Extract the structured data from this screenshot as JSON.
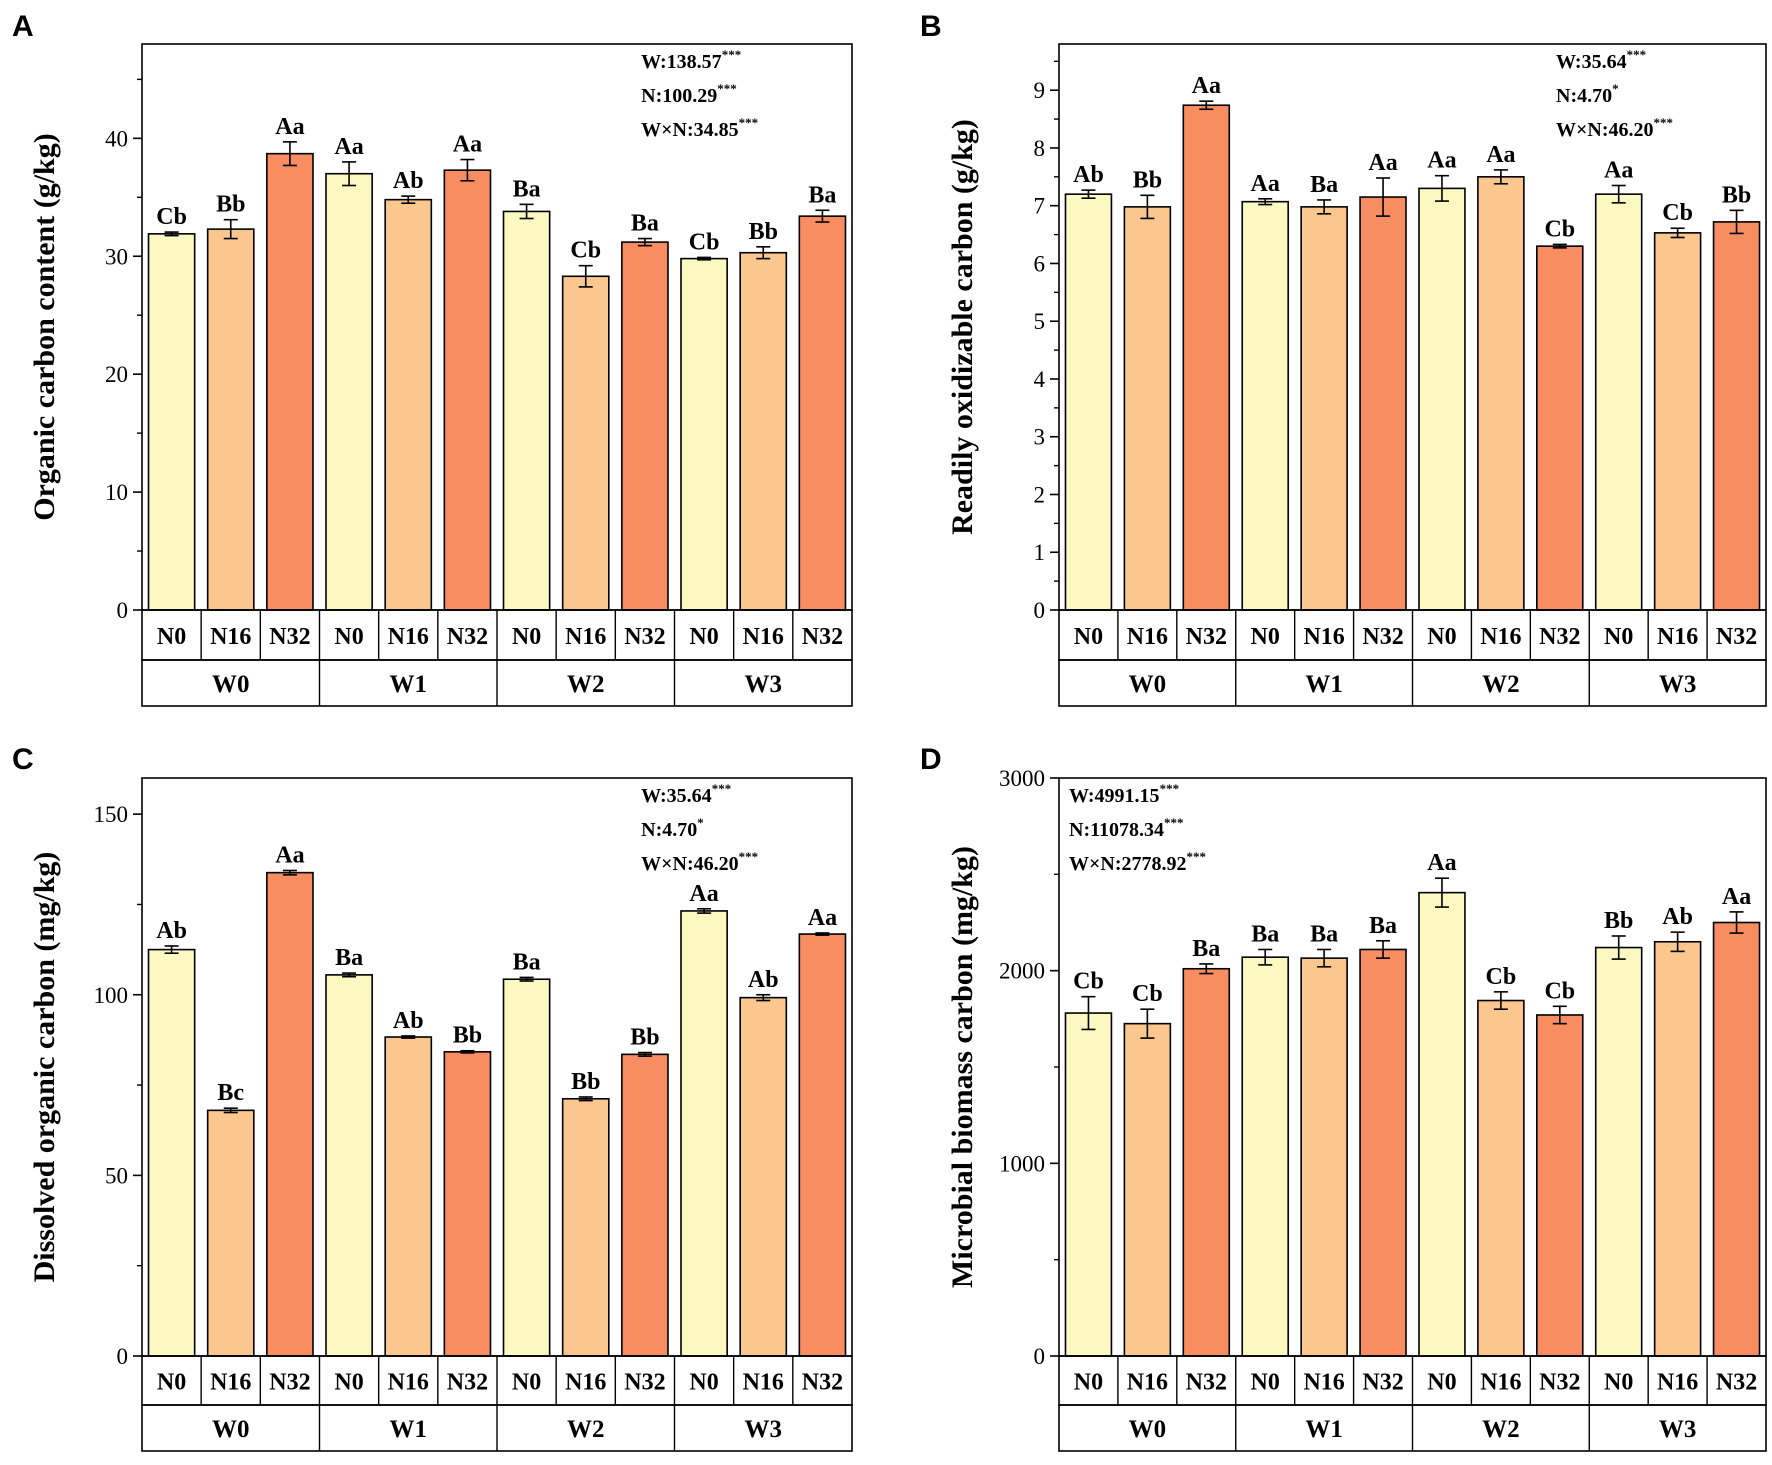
{
  "colors": {
    "N0": "#fcf8c2",
    "N16": "#fbc78f",
    "N32": "#f98d62",
    "stroke": "#000000"
  },
  "chart_data": [
    {
      "panel": "A",
      "type": "bar",
      "ylabel": "Organic carbon content  (g/kg)",
      "ylim": [
        0,
        48
      ],
      "yticks": [
        0,
        10,
        20,
        30,
        40
      ],
      "groups": [
        "W0",
        "W1",
        "W2",
        "W3"
      ],
      "categories": [
        "N0",
        "N16",
        "N32"
      ],
      "values": [
        [
          31.9,
          32.3,
          38.7
        ],
        [
          37.0,
          34.8,
          37.3
        ],
        [
          33.8,
          28.3,
          31.2
        ],
        [
          29.8,
          30.3,
          33.4
        ]
      ],
      "errors": [
        [
          0.15,
          0.8,
          1.0
        ],
        [
          1.0,
          0.3,
          0.9
        ],
        [
          0.6,
          0.9,
          0.3
        ],
        [
          0.1,
          0.5,
          0.5
        ]
      ],
      "labels": [
        [
          "Cb",
          "Bb",
          "Aa"
        ],
        [
          "Aa",
          "Ab",
          "Aa"
        ],
        [
          "Ba",
          "Cb",
          "Ba"
        ],
        [
          "Cb",
          "Bb",
          "Ba"
        ]
      ],
      "stats_position": "top-right",
      "stats": [
        {
          "text": "W:138.57",
          "sig": "***"
        },
        {
          "text": "N:100.29",
          "sig": "***"
        },
        {
          "text": "W×N:34.85",
          "sig": "***"
        }
      ]
    },
    {
      "panel": "B",
      "type": "bar",
      "ylabel": "Readily oxidizable carbon (g/kg)",
      "ylim": [
        0,
        9.8
      ],
      "yticks": [
        0,
        1,
        2,
        3,
        4,
        5,
        6,
        7,
        8,
        9
      ],
      "groups": [
        "W0",
        "W1",
        "W2",
        "W3"
      ],
      "categories": [
        "N0",
        "N16",
        "N32"
      ],
      "values": [
        [
          7.2,
          6.98,
          8.74
        ],
        [
          7.07,
          6.98,
          7.15
        ],
        [
          7.3,
          7.5,
          6.3
        ],
        [
          7.2,
          6.53,
          6.72
        ]
      ],
      "errors": [
        [
          0.07,
          0.2,
          0.07
        ],
        [
          0.05,
          0.12,
          0.33
        ],
        [
          0.22,
          0.12,
          0.03
        ],
        [
          0.15,
          0.08,
          0.2
        ]
      ],
      "labels": [
        [
          "Ab",
          "Bb",
          "Aa"
        ],
        [
          "Aa",
          "Ba",
          "Aa"
        ],
        [
          "Aa",
          "Aa",
          "Cb"
        ],
        [
          "Aa",
          "Cb",
          "Bb"
        ]
      ],
      "stats_position": "top-right",
      "stats": [
        {
          "text": "W:35.64",
          "sig": "***"
        },
        {
          "text": "N:4.70",
          "sig": "*"
        },
        {
          "text": "W×N:46.20",
          "sig": "***"
        }
      ]
    },
    {
      "panel": "C",
      "type": "bar",
      "ylabel": "Dissolved organic carbon (mg/kg)",
      "ylim": [
        0,
        160
      ],
      "yticks": [
        0,
        50,
        100,
        150
      ],
      "groups": [
        "W0",
        "W1",
        "W2",
        "W3"
      ],
      "categories": [
        "N0",
        "N16",
        "N32"
      ],
      "values": [
        [
          112.5,
          68.0,
          133.8
        ],
        [
          105.5,
          88.3,
          84.2
        ],
        [
          104.3,
          71.2,
          83.5
        ],
        [
          123.2,
          99.2,
          116.8
        ]
      ],
      "errors": [
        [
          1.0,
          0.6,
          0.6
        ],
        [
          0.5,
          0.3,
          0.3
        ],
        [
          0.5,
          0.5,
          0.5
        ],
        [
          0.6,
          0.8,
          0.3
        ]
      ],
      "labels": [
        [
          "Ab",
          "Bc",
          "Aa"
        ],
        [
          "Ba",
          "Ab",
          "Bb"
        ],
        [
          "Ba",
          "Bb",
          "Bb"
        ],
        [
          "Aa",
          "Ab",
          "Aa"
        ]
      ],
      "stats_position": "top-right",
      "stats": [
        {
          "text": "W:35.64",
          "sig": "***"
        },
        {
          "text": "N:4.70",
          "sig": "*"
        },
        {
          "text": "W×N:46.20",
          "sig": "***"
        }
      ]
    },
    {
      "panel": "D",
      "type": "bar",
      "ylabel": "Microbial biomass carbon (mg/kg)",
      "ylim": [
        0,
        3000
      ],
      "yticks": [
        0,
        1000,
        2000,
        3000
      ],
      "groups": [
        "W0",
        "W1",
        "W2",
        "W3"
      ],
      "categories": [
        "N0",
        "N16",
        "N32"
      ],
      "values": [
        [
          1780,
          1725,
          2010
        ],
        [
          2070,
          2065,
          2110
        ],
        [
          2405,
          1845,
          1770
        ],
        [
          2120,
          2150,
          2250
        ]
      ],
      "errors": [
        [
          85,
          75,
          25
        ],
        [
          40,
          45,
          45
        ],
        [
          75,
          45,
          45
        ],
        [
          60,
          50,
          55
        ]
      ],
      "labels": [
        [
          "Cb",
          "Cb",
          "Ba"
        ],
        [
          "Ba",
          "Ba",
          "Ba"
        ],
        [
          "Aa",
          "Cb",
          "Cb"
        ],
        [
          "Bb",
          "Ab",
          "Aa"
        ]
      ],
      "stats_position": "top-left",
      "stats": [
        {
          "text": "W:4991.15",
          "sig": "***"
        },
        {
          "text": "N:11078.34",
          "sig": "***"
        },
        {
          "text": "W×N:2778.92",
          "sig": "***"
        }
      ]
    }
  ]
}
